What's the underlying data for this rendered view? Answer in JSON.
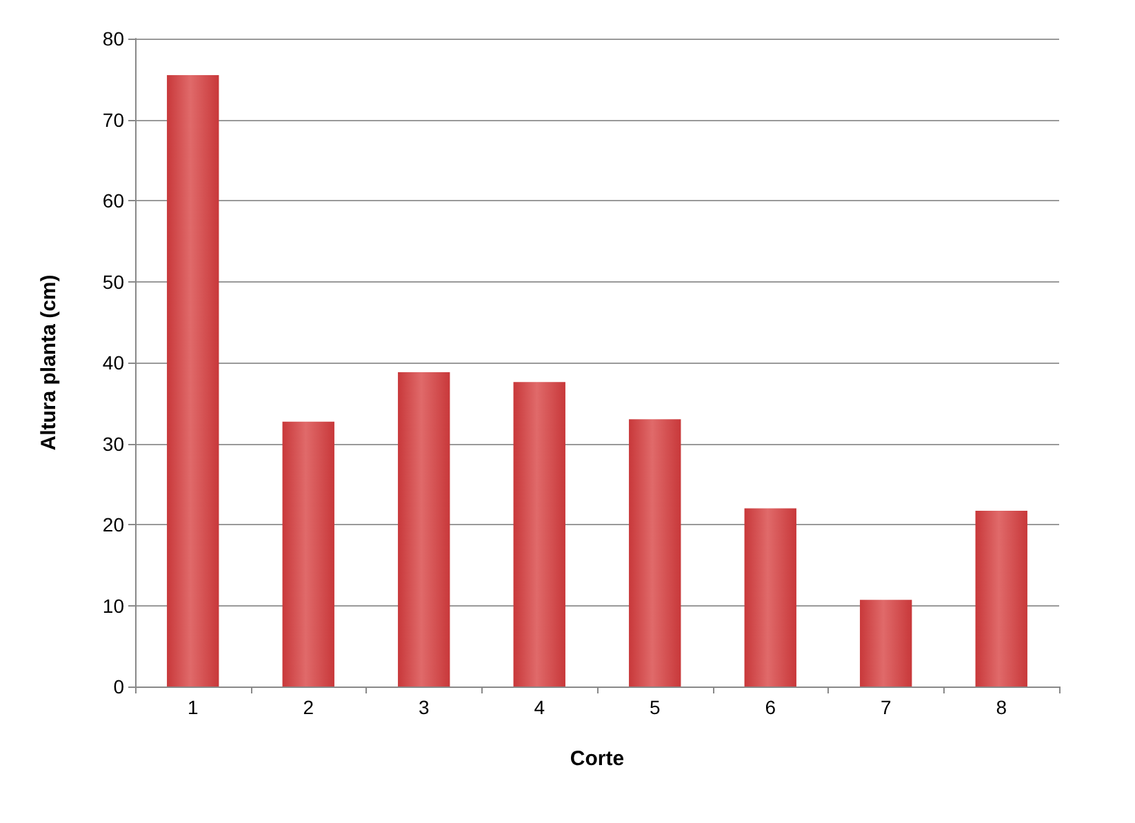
{
  "chart_data": {
    "type": "bar",
    "xlabel": "Corte",
    "ylabel": "Altura planta (cm)",
    "categories": [
      "1",
      "2",
      "3",
      "4",
      "5",
      "6",
      "7",
      "8"
    ],
    "values": [
      75.5,
      32.7,
      38.8,
      37.6,
      33,
      22,
      10.7,
      21.7
    ],
    "color": "#c8383a",
    "ylim": [
      0,
      80
    ],
    "yticks": [
      0,
      10,
      20,
      30,
      40,
      50,
      60,
      70,
      80
    ],
    "grid": "y"
  }
}
